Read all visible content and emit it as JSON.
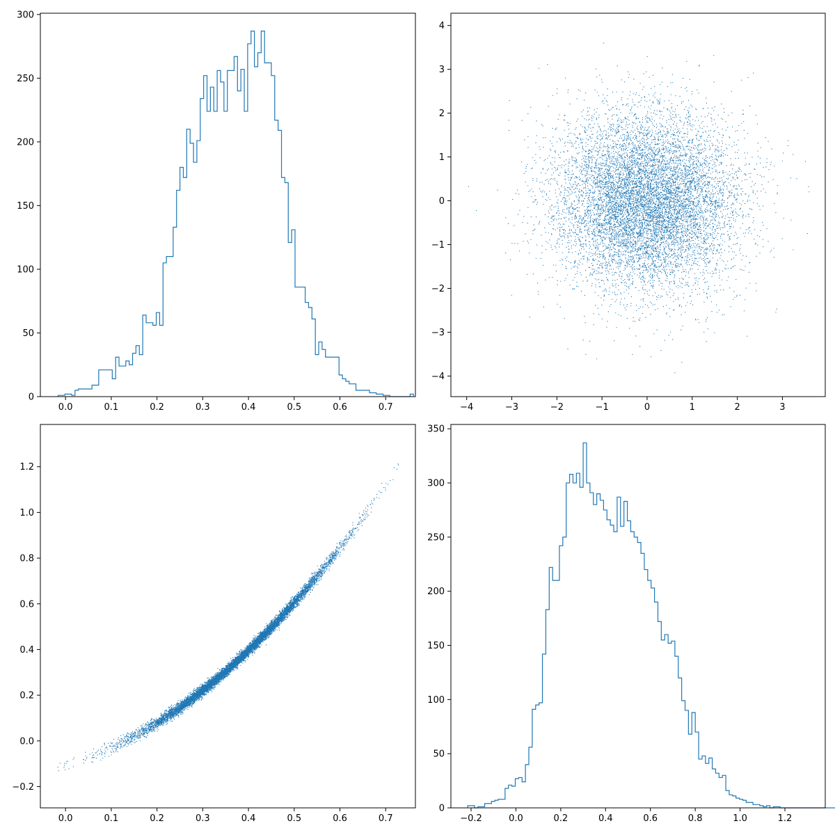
{
  "colors": {
    "series": "#1f77b4",
    "axis": "#000000",
    "background": "#ffffff"
  },
  "chart_data": [
    {
      "type": "histogram",
      "position": "top-left",
      "title": "",
      "xlabel": "",
      "ylabel": "",
      "xlim": [
        -0.055,
        0.765
      ],
      "ylim": [
        0,
        301
      ],
      "xticks": [
        "0.0",
        "0.1",
        "0.2",
        "0.3",
        "0.4",
        "0.5",
        "0.6",
        "0.7"
      ],
      "yticks": [
        "0",
        "50",
        "100",
        "150",
        "200",
        "250",
        "300"
      ],
      "bin_start": -0.0162,
      "bin_width": 0.0074,
      "counts": [
        1,
        1,
        2,
        2,
        1,
        5,
        6,
        6,
        6,
        6,
        9,
        9,
        21,
        21,
        21,
        21,
        14,
        31,
        24,
        24,
        28,
        25,
        34,
        40,
        33,
        64,
        58,
        58,
        56,
        66,
        56,
        105,
        110,
        110,
        133,
        162,
        180,
        172,
        210,
        199,
        184,
        201,
        234,
        252,
        224,
        243,
        224,
        256,
        247,
        224,
        256,
        256,
        267,
        240,
        257,
        224,
        277,
        287,
        259,
        270,
        287,
        262,
        262,
        252,
        217,
        209,
        172,
        168,
        121,
        131,
        86,
        86,
        86,
        74,
        70,
        61,
        33,
        43,
        37,
        31,
        31,
        31,
        31,
        17,
        14,
        12,
        10,
        10,
        5,
        5,
        5,
        5,
        3,
        3,
        2,
        2,
        1,
        1,
        0,
        0,
        0,
        0,
        0,
        0,
        2
      ]
    },
    {
      "type": "scatter",
      "position": "top-right",
      "title": "",
      "xlabel": "",
      "ylabel": "",
      "xlim": [
        -4.35,
        3.95
      ],
      "ylim": [
        -4.47,
        4.28
      ],
      "xticks": [
        "−4",
        "−3",
        "−2",
        "−1",
        "0",
        "1",
        "2",
        "3"
      ],
      "yticks": [
        "−4",
        "−3",
        "−2",
        "−1",
        "0",
        "1",
        "2",
        "3",
        "4"
      ],
      "sample": {
        "n": 10000,
        "x_mean": 0,
        "x_std": 1,
        "y_mean": 0,
        "y_std": 1
      }
    },
    {
      "type": "scatter",
      "position": "bottom-left",
      "title": "",
      "xlabel": "",
      "ylabel": "",
      "xlim": [
        -0.055,
        0.765
      ],
      "ylim": [
        -0.293,
        1.385
      ],
      "xticks": [
        "0.0",
        "0.1",
        "0.2",
        "0.3",
        "0.4",
        "0.5",
        "0.6",
        "0.7"
      ],
      "yticks": [
        "−0.2",
        "0.0",
        "0.2",
        "0.4",
        "0.6",
        "0.8",
        "1.0",
        "1.2"
      ],
      "sample": {
        "n": 10000,
        "x_mean": 0.37,
        "x_std": 0.11,
        "x_min": -0.02,
        "x_max": 0.73,
        "curve": {
          "a": -0.105,
          "b": 0.6,
          "c": 1.65
        },
        "noise_std": 0.011
      }
    },
    {
      "type": "histogram",
      "position": "bottom-right",
      "title": "",
      "xlabel": "",
      "ylabel": "",
      "xlim": [
        -0.29,
        1.38
      ],
      "ylim": [
        0,
        354
      ],
      "xticks": [
        "−0.2",
        "0.0",
        "0.2",
        "0.4",
        "0.6",
        "0.8",
        "1.0",
        "1.2"
      ],
      "yticks": [
        "0",
        "50",
        "100",
        "150",
        "200",
        "250",
        "300",
        "350"
      ],
      "bin_start": -0.215,
      "bin_width": 0.01515,
      "counts": [
        2,
        2,
        0,
        1,
        1,
        4,
        4,
        6,
        7,
        8,
        8,
        18,
        21,
        20,
        27,
        28,
        24,
        40,
        56,
        91,
        95,
        97,
        142,
        183,
        222,
        210,
        210,
        242,
        250,
        300,
        308,
        300,
        309,
        296,
        337,
        300,
        291,
        280,
        290,
        284,
        275,
        266,
        261,
        255,
        287,
        260,
        283,
        265,
        255,
        250,
        245,
        235,
        220,
        210,
        203,
        190,
        172,
        155,
        160,
        152,
        154,
        140,
        120,
        99,
        90,
        68,
        88,
        70,
        45,
        48,
        41,
        46,
        36,
        32,
        28,
        30,
        16,
        12,
        11,
        9,
        8,
        7,
        5,
        5,
        3,
        3,
        2,
        1,
        2,
        0,
        1,
        1,
        0,
        0,
        0,
        0,
        0,
        0,
        0,
        0,
        0,
        0,
        0,
        0,
        0,
        0,
        0,
        0,
        0,
        0,
        1
      ]
    }
  ]
}
